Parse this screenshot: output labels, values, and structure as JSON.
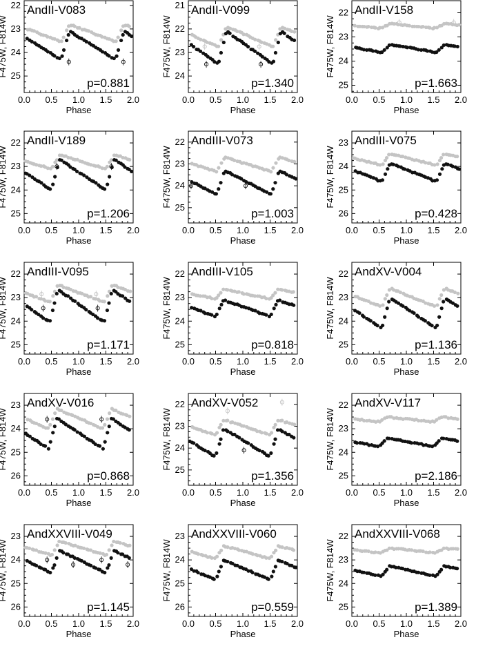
{
  "colors": {
    "f475w": "#c4c4c4",
    "f814w": "#111111",
    "axis": "#000000"
  },
  "common": {
    "xlabel": "Phase",
    "ylabel": "F475W, F814W",
    "xlim": [
      0.0,
      2.0
    ],
    "xticks": [
      "0.0",
      "0.5",
      "1.0",
      "1.5",
      "2.0"
    ]
  },
  "chart_data": [
    {
      "type": "scatter",
      "title": "AndII-V083",
      "period_label": "p=0.881",
      "ylim": [
        25.7,
        21.8
      ],
      "yticks": [
        22,
        23,
        24,
        25
      ],
      "f475w": {
        "minPhase": 0.68,
        "maxMag": 22.8,
        "amp": 0.75,
        "outliers": []
      },
      "f814w": {
        "minPhase": 0.68,
        "maxMag": 23.1,
        "amp": 1.2,
        "outliers": [
          [
            0.82,
            24.4
          ],
          [
            1.82,
            24.4
          ]
        ]
      }
    },
    {
      "type": "scatter",
      "title": "AndII-V099",
      "period_label": "p=1.340",
      "ylim": [
        24.7,
        20.8
      ],
      "yticks": [
        21,
        22,
        23,
        24
      ],
      "f475w": {
        "minPhase": 0.55,
        "maxMag": 21.9,
        "amp": 0.85,
        "outliers": [
          [
            0.3,
            22.75
          ],
          [
            1.3,
            22.75
          ]
        ]
      },
      "f814w": {
        "minPhase": 0.55,
        "maxMag": 22.1,
        "amp": 1.4,
        "outliers": [
          [
            0.33,
            23.5
          ],
          [
            1.33,
            23.5
          ]
        ]
      }
    },
    {
      "type": "scatter",
      "title": "AndII-V158",
      "period_label": "p=1.663",
      "ylim": [
        25.3,
        21.5
      ],
      "yticks": [
        22,
        23,
        24,
        25
      ],
      "f475w": {
        "minPhase": 0.55,
        "maxMag": 22.45,
        "amp": 0.2,
        "outliers": [
          [
            0.87,
            22.4
          ],
          [
            1.87,
            22.4
          ]
        ]
      },
      "f814w": {
        "minPhase": 0.55,
        "maxMag": 23.3,
        "amp": 0.35,
        "outliers": []
      }
    },
    {
      "type": "scatter",
      "title": "AndII-V189",
      "period_label": "p=1.206",
      "ylim": [
        25.4,
        21.5
      ],
      "yticks": [
        22,
        23,
        24,
        25
      ],
      "f475w": {
        "minPhase": 0.5,
        "maxMag": 22.5,
        "amp": 0.6,
        "outliers": []
      },
      "f814w": {
        "minPhase": 0.5,
        "maxMag": 22.7,
        "amp": 1.3,
        "outliers": [
          [
            0.6,
            23.0
          ],
          [
            1.6,
            23.0
          ]
        ]
      }
    },
    {
      "type": "scatter",
      "title": "AndIII-V073",
      "period_label": "p=1.003",
      "ylim": [
        25.7,
        21.5
      ],
      "yticks": [
        22,
        23,
        24,
        25
      ],
      "f475w": {
        "minPhase": 0.52,
        "maxMag": 22.7,
        "amp": 0.65,
        "outliers": []
      },
      "f814w": {
        "minPhase": 0.52,
        "maxMag": 23.3,
        "amp": 1.1,
        "outliers": [
          [
            0.05,
            24.0
          ],
          [
            1.05,
            24.0
          ]
        ]
      }
    },
    {
      "type": "scatter",
      "title": "AndIII-V075",
      "period_label": "p=0.428",
      "ylim": [
        26.4,
        22.5
      ],
      "yticks": [
        23,
        24,
        25,
        26
      ],
      "f475w": {
        "minPhase": 0.55,
        "maxMag": 23.45,
        "amp": 0.5,
        "outliers": []
      },
      "f814w": {
        "minPhase": 0.55,
        "maxMag": 23.85,
        "amp": 0.8,
        "outliers": []
      }
    },
    {
      "type": "scatter",
      "title": "AndIII-V095",
      "period_label": "p=1.171",
      "ylim": [
        25.4,
        21.5
      ],
      "yticks": [
        22,
        23,
        24,
        25
      ],
      "f475w": {
        "minPhase": 0.47,
        "maxMag": 22.45,
        "amp": 0.75,
        "outliers": [
          [
            0.32,
            22.85
          ],
          [
            1.32,
            22.85
          ]
        ]
      },
      "f814w": {
        "minPhase": 0.47,
        "maxMag": 22.65,
        "amp": 1.4,
        "outliers": [
          [
            0.35,
            23.45
          ],
          [
            1.35,
            23.45
          ]
        ]
      }
    },
    {
      "type": "scatter",
      "title": "AndIII-V105",
      "period_label": "p=0.818",
      "ylim": [
        25.4,
        21.5
      ],
      "yticks": [
        22,
        23,
        24,
        25
      ],
      "f475w": {
        "minPhase": 0.5,
        "maxMag": 22.65,
        "amp": 0.4,
        "outliers": []
      },
      "f814w": {
        "minPhase": 0.5,
        "maxMag": 23.1,
        "amp": 0.7,
        "outliers": []
      }
    },
    {
      "type": "scatter",
      "title": "AndXV-V004",
      "period_label": "p=1.136",
      "ylim": [
        25.4,
        21.5
      ],
      "yticks": [
        22,
        23,
        24,
        25
      ],
      "f475w": {
        "minPhase": 0.55,
        "maxMag": 22.6,
        "amp": 0.8,
        "outliers": []
      },
      "f814w": {
        "minPhase": 0.55,
        "maxMag": 23.0,
        "amp": 1.3,
        "outliers": []
      }
    },
    {
      "type": "scatter",
      "title": "AndXV-V016",
      "period_label": "p=0.868",
      "ylim": [
        26.4,
        22.5
      ],
      "yticks": [
        23,
        24,
        25,
        26
      ],
      "f475w": {
        "minPhase": 0.45,
        "maxMag": 23.15,
        "amp": 0.85,
        "outliers": []
      },
      "f814w": {
        "minPhase": 0.45,
        "maxMag": 23.55,
        "amp": 1.3,
        "outliers": [
          [
            0.42,
            23.6
          ],
          [
            1.42,
            23.6
          ]
        ]
      }
    },
    {
      "type": "scatter",
      "title": "AndXV-V052",
      "period_label": "p=1.356",
      "ylim": [
        25.7,
        21.5
      ],
      "yticks": [
        22,
        23,
        24,
        25
      ],
      "f475w": {
        "minPhase": 0.5,
        "maxMag": 22.7,
        "amp": 0.7,
        "outliers": [
          [
            0.72,
            22.3
          ],
          [
            1.72,
            21.9
          ]
        ]
      },
      "f814w": {
        "minPhase": 0.5,
        "maxMag": 23.1,
        "amp": 1.3,
        "outliers": [
          [
            1.02,
            24.1
          ]
        ]
      }
    },
    {
      "type": "scatter",
      "title": "AndXV-V117",
      "period_label": "p=2.186",
      "ylim": [
        25.4,
        21.5
      ],
      "yticks": [
        22,
        23,
        24,
        25
      ],
      "f475w": {
        "minPhase": 0.5,
        "maxMag": 22.5,
        "amp": 0.2,
        "outliers": []
      },
      "f814w": {
        "minPhase": 0.5,
        "maxMag": 23.4,
        "amp": 0.35,
        "outliers": []
      }
    },
    {
      "type": "scatter",
      "title": "AndXXVIII-V049",
      "period_label": "p=1.145",
      "ylim": [
        26.4,
        22.5
      ],
      "yticks": [
        23,
        24,
        25,
        26
      ],
      "f475w": {
        "minPhase": 0.5,
        "maxMag": 23.2,
        "amp": 0.6,
        "outliers": []
      },
      "f814w": {
        "minPhase": 0.5,
        "maxMag": 23.6,
        "amp": 0.95,
        "outliers": [
          [
            0.42,
            24.0
          ],
          [
            0.9,
            24.2
          ],
          [
            1.42,
            24.0
          ],
          [
            1.9,
            24.2
          ]
        ]
      }
    },
    {
      "type": "scatter",
      "title": "AndXXVIII-V060",
      "period_label": "p=0.559",
      "ylim": [
        26.4,
        22.5
      ],
      "yticks": [
        23,
        24,
        25,
        26
      ],
      "f475w": {
        "minPhase": 0.5,
        "maxMag": 23.4,
        "amp": 0.55,
        "outliers": []
      },
      "f814w": {
        "minPhase": 0.5,
        "maxMag": 24.0,
        "amp": 0.85,
        "outliers": []
      }
    },
    {
      "type": "scatter",
      "title": "AndXXVIII-V068",
      "period_label": "p=1.389",
      "ylim": [
        25.4,
        21.5
      ],
      "yticks": [
        22,
        23,
        24,
        25
      ],
      "f475w": {
        "minPhase": 0.55,
        "maxMag": 22.5,
        "amp": 0.2,
        "outliers": []
      },
      "f814w": {
        "minPhase": 0.55,
        "maxMag": 23.25,
        "amp": 0.45,
        "outliers": []
      }
    }
  ]
}
